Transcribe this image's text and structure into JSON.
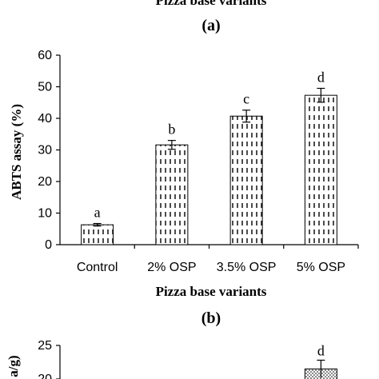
{
  "panels": {
    "top_partial_xlabel": "Pizza base variants",
    "label_a": "(a)",
    "label_b": "(b)"
  },
  "chart_data": [
    {
      "type": "bar",
      "panel": "(a)",
      "categories": [
        "Control",
        "2% OSP",
        "3.5% OSP",
        "5% OSP"
      ],
      "values": [
        6.3,
        31.6,
        40.7,
        47.3
      ],
      "errors": [
        0.4,
        1.4,
        1.9,
        2.2
      ],
      "letters": [
        "a",
        "b",
        "c",
        "d"
      ],
      "xlabel": "Pizza base variants",
      "ylabel": "ABTS assay (%)",
      "ylim": [
        0,
        60
      ],
      "yticks": [
        0,
        10,
        20,
        30,
        40,
        50,
        60
      ],
      "grid": false,
      "bar_pattern": "vertical-dashes",
      "colors": {
        "bar_fill": "#ffffff",
        "bar_stroke": "#000000",
        "pattern": "#000000"
      }
    },
    {
      "type": "bar",
      "panel": "(b)",
      "partial": true,
      "categories": [
        "Control",
        "2% OSP",
        "3.5% OSP",
        "5% OSP"
      ],
      "visible_values": [
        null,
        null,
        null,
        21.5
      ],
      "errors": [
        null,
        null,
        null,
        1.3
      ],
      "letters": [
        null,
        null,
        null,
        "d"
      ],
      "ylabel_fragment": "a/g)",
      "yticks": [
        20,
        25
      ],
      "ylim": [
        0,
        25
      ],
      "bar_pattern": "dots",
      "colors": {
        "bar_fill": "#ffffff",
        "bar_stroke": "#000000",
        "pattern": "#000000"
      }
    }
  ]
}
